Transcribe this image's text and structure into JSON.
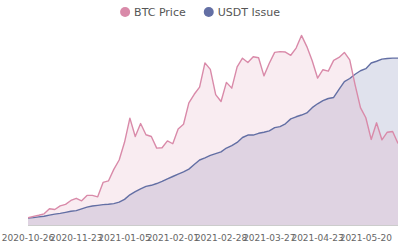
{
  "chart_data": {
    "type": "area",
    "categories": [
      "2020-10-26",
      null,
      null,
      null,
      null,
      null,
      null,
      null,
      null,
      "2020-11-23",
      null,
      null,
      null,
      null,
      null,
      null,
      null,
      null,
      "2021-01-05",
      null,
      null,
      null,
      null,
      null,
      null,
      null,
      null,
      "2021-02-01",
      null,
      null,
      null,
      null,
      null,
      null,
      null,
      null,
      "2021-02-28",
      null,
      null,
      null,
      null,
      null,
      null,
      null,
      null,
      "2021-03-27",
      null,
      null,
      null,
      null,
      null,
      null,
      null,
      null,
      "2021-04-23",
      null,
      null,
      null,
      null,
      null,
      null,
      null,
      null,
      "2021-05-20",
      null,
      null,
      null,
      null,
      null,
      null
    ],
    "series": [
      {
        "name": "BTC Price",
        "color": "#d98aa9",
        "values": [
          13000,
          13400,
          13700,
          14100,
          15500,
          15300,
          16300,
          16700,
          17800,
          18400,
          17700,
          19200,
          19200,
          18800,
          22800,
          23200,
          26400,
          29000,
          33900,
          40600,
          35500,
          39100,
          36000,
          35500,
          32300,
          32400,
          34300,
          33500,
          37600,
          38900,
          44800,
          47200,
          49200,
          55900,
          54100,
          47100,
          45200,
          50500,
          48900,
          54800,
          57200,
          56000,
          57600,
          57300,
          52300,
          55800,
          58800,
          59000,
          58900,
          58000,
          60000,
          63500,
          60400,
          56500,
          51700,
          54000,
          53600,
          56600,
          57400,
          58800,
          56700,
          49800,
          43500,
          40700,
          34700,
          39300,
          34600,
          36700,
          36900,
          33600
        ]
      },
      {
        "name": "USDT Issue",
        "color": "#636fa4",
        "axis": "y2",
        "values": [
          16.5,
          16.6,
          16.8,
          17.0,
          17.3,
          17.6,
          17.8,
          18.1,
          18.4,
          18.6,
          19.1,
          19.6,
          19.9,
          20.1,
          20.3,
          20.4,
          20.6,
          21.0,
          21.8,
          23.1,
          24.0,
          24.8,
          25.5,
          25.8,
          26.3,
          26.9,
          27.6,
          28.3,
          29.0,
          29.6,
          30.4,
          31.7,
          33.0,
          33.6,
          34.3,
          34.8,
          35.3,
          36.4,
          37.1,
          38.0,
          39.4,
          40.1,
          40.1,
          40.6,
          40.9,
          41.3,
          42.2,
          42.5,
          43.3,
          44.7,
          45.3,
          45.8,
          46.4,
          47.9,
          49.0,
          49.9,
          50.5,
          50.8,
          53.1,
          55.3,
          56.2,
          57.4,
          58.4,
          59.0,
          60.6,
          61.1,
          61.7,
          61.9,
          62.0,
          62.0
        ]
      }
    ],
    "ylim": [
      11000,
      65000
    ],
    "y2lim": [
      14.5,
      70
    ],
    "legend": "top",
    "tick_labels": "x",
    "grid": false
  }
}
